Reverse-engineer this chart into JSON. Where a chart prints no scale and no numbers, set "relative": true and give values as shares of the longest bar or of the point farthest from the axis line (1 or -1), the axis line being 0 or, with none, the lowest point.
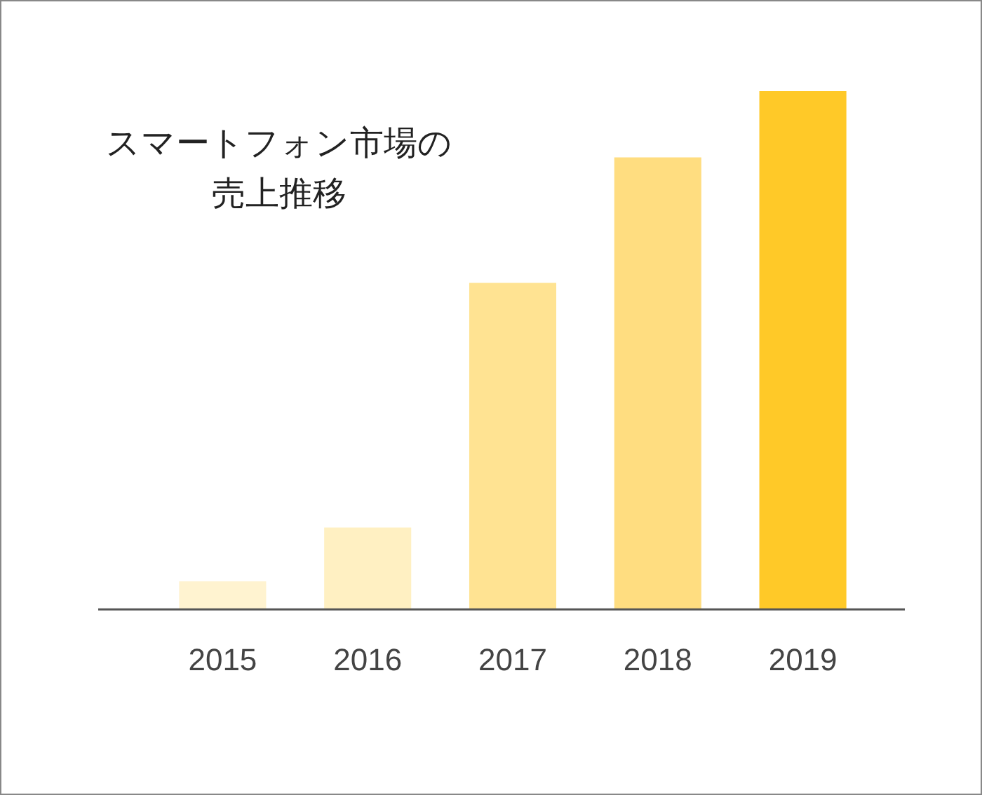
{
  "chart_data": {
    "type": "bar",
    "title": "スマートフォン市場の売上推移",
    "relative": true,
    "categories": [
      "2015",
      "2016",
      "2017",
      "2018",
      "2019"
    ],
    "values": [
      0.054,
      0.158,
      0.63,
      0.872,
      1
    ],
    "colors": [
      "#fff3d0",
      "#fff0c2",
      "#ffe392",
      "#ffdd80",
      "#ffc928"
    ]
  }
}
